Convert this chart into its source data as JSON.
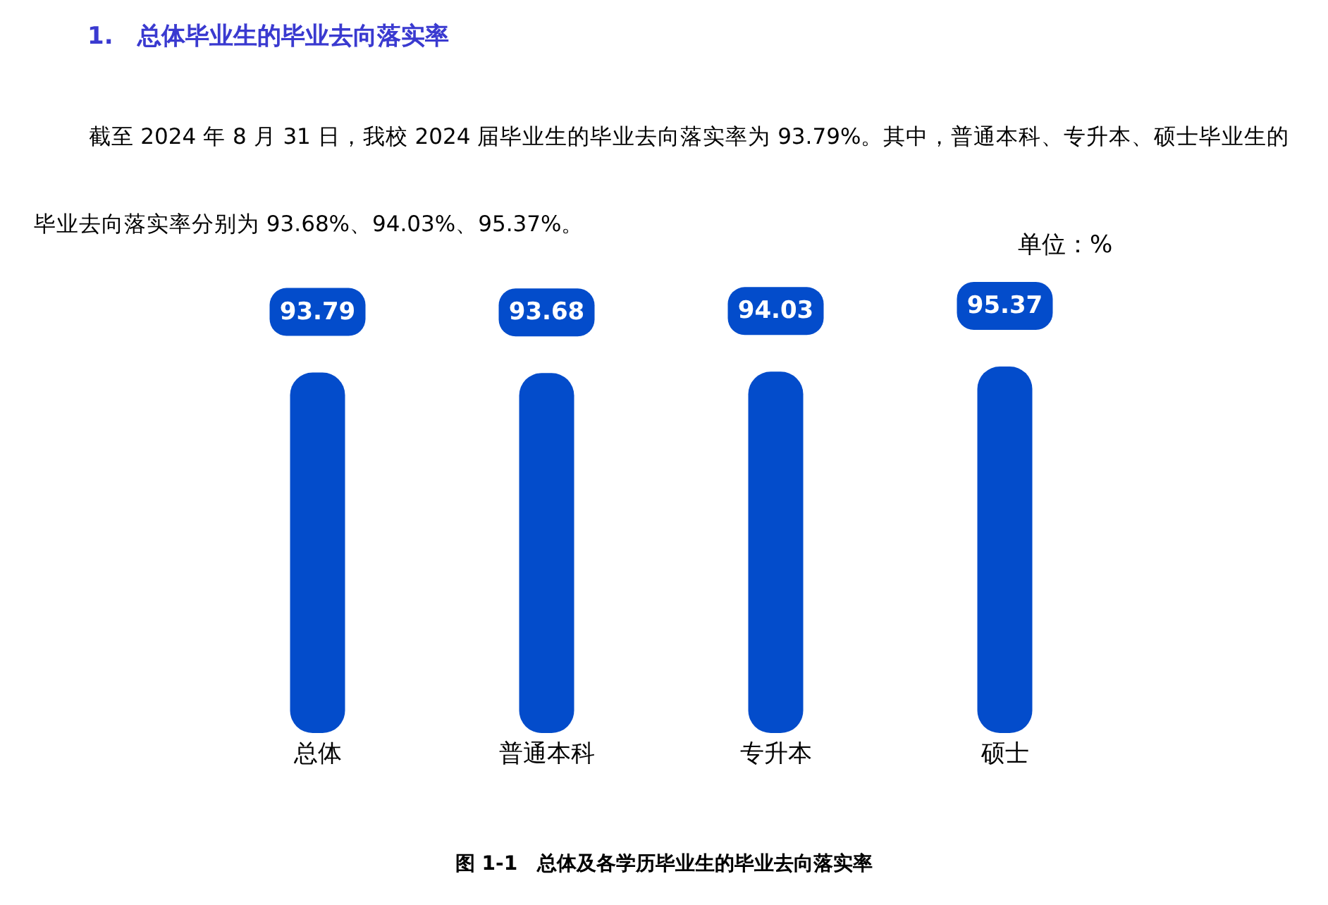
{
  "chart_data": {
    "type": "bar",
    "title": "1.　总体毕业生的毕业去向落实率",
    "subtitle": "截至 2024 年 8 月 31 日，我校 2024 届毕业生的毕业去向落实率为 93.79%。其中，普通本科、专升本、硕士毕业生的毕业去向落实率分别为 93.68%、94.03%、95.37%。",
    "ylabel": "单位：%",
    "annotations": [
      "图 1-1　总体及各学历毕业生的毕业去向落实率"
    ],
    "categories": [
      "总体",
      "普通本科",
      "专升本",
      "硕士"
    ],
    "values": [
      93.79,
      93.68,
      94.03,
      95.37
    ],
    "color": "#034ccb",
    "data_labels": true
  }
}
